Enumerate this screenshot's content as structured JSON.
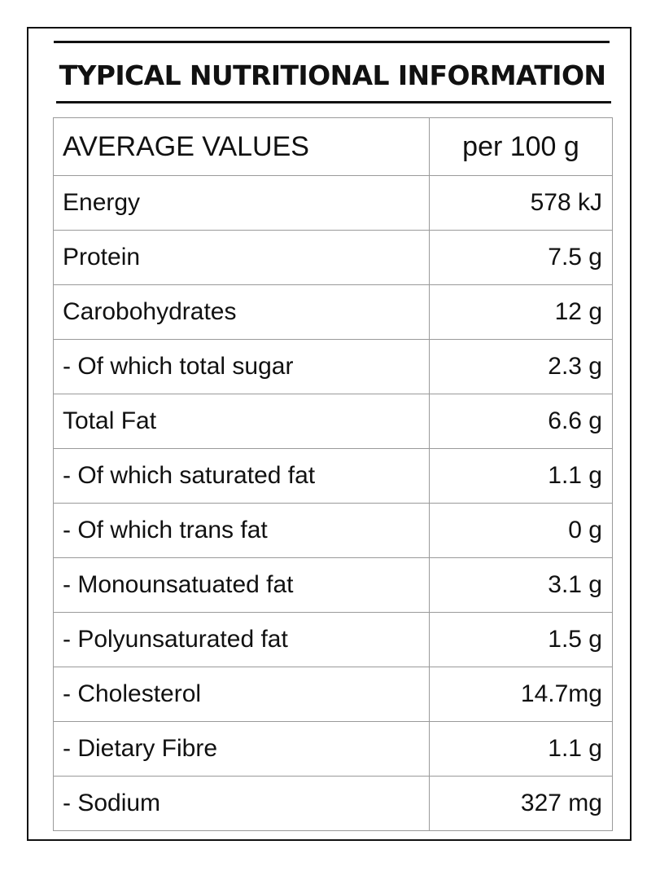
{
  "title": "TYPICAL NUTRITIONAL INFORMATION",
  "table": {
    "header": {
      "name": "AVERAGE VALUES",
      "value": "per 100 g"
    },
    "rows": [
      {
        "name": "Energy",
        "value": "578 kJ"
      },
      {
        "name": "Protein",
        "value": "7.5 g"
      },
      {
        "name": "Carobohydrates",
        "value": "12 g"
      },
      {
        "name": "- Of which total sugar",
        "value": "2.3 g"
      },
      {
        "name": "Total Fat",
        "value": "6.6 g"
      },
      {
        "name": "- Of which saturated fat",
        "value": "1.1 g"
      },
      {
        "name": "- Of which trans fat",
        "value": "0 g"
      },
      {
        "name": "- Monounsatuated fat",
        "value": "3.1 g"
      },
      {
        "name": "- Polyunsaturated fat",
        "value": "1.5 g"
      },
      {
        "name": "- Cholesterol",
        "value": "14.7mg"
      },
      {
        "name": "- Dietary Fibre",
        "value": "1.1 g"
      },
      {
        "name": "- Sodium",
        "value": "327 mg"
      }
    ]
  }
}
